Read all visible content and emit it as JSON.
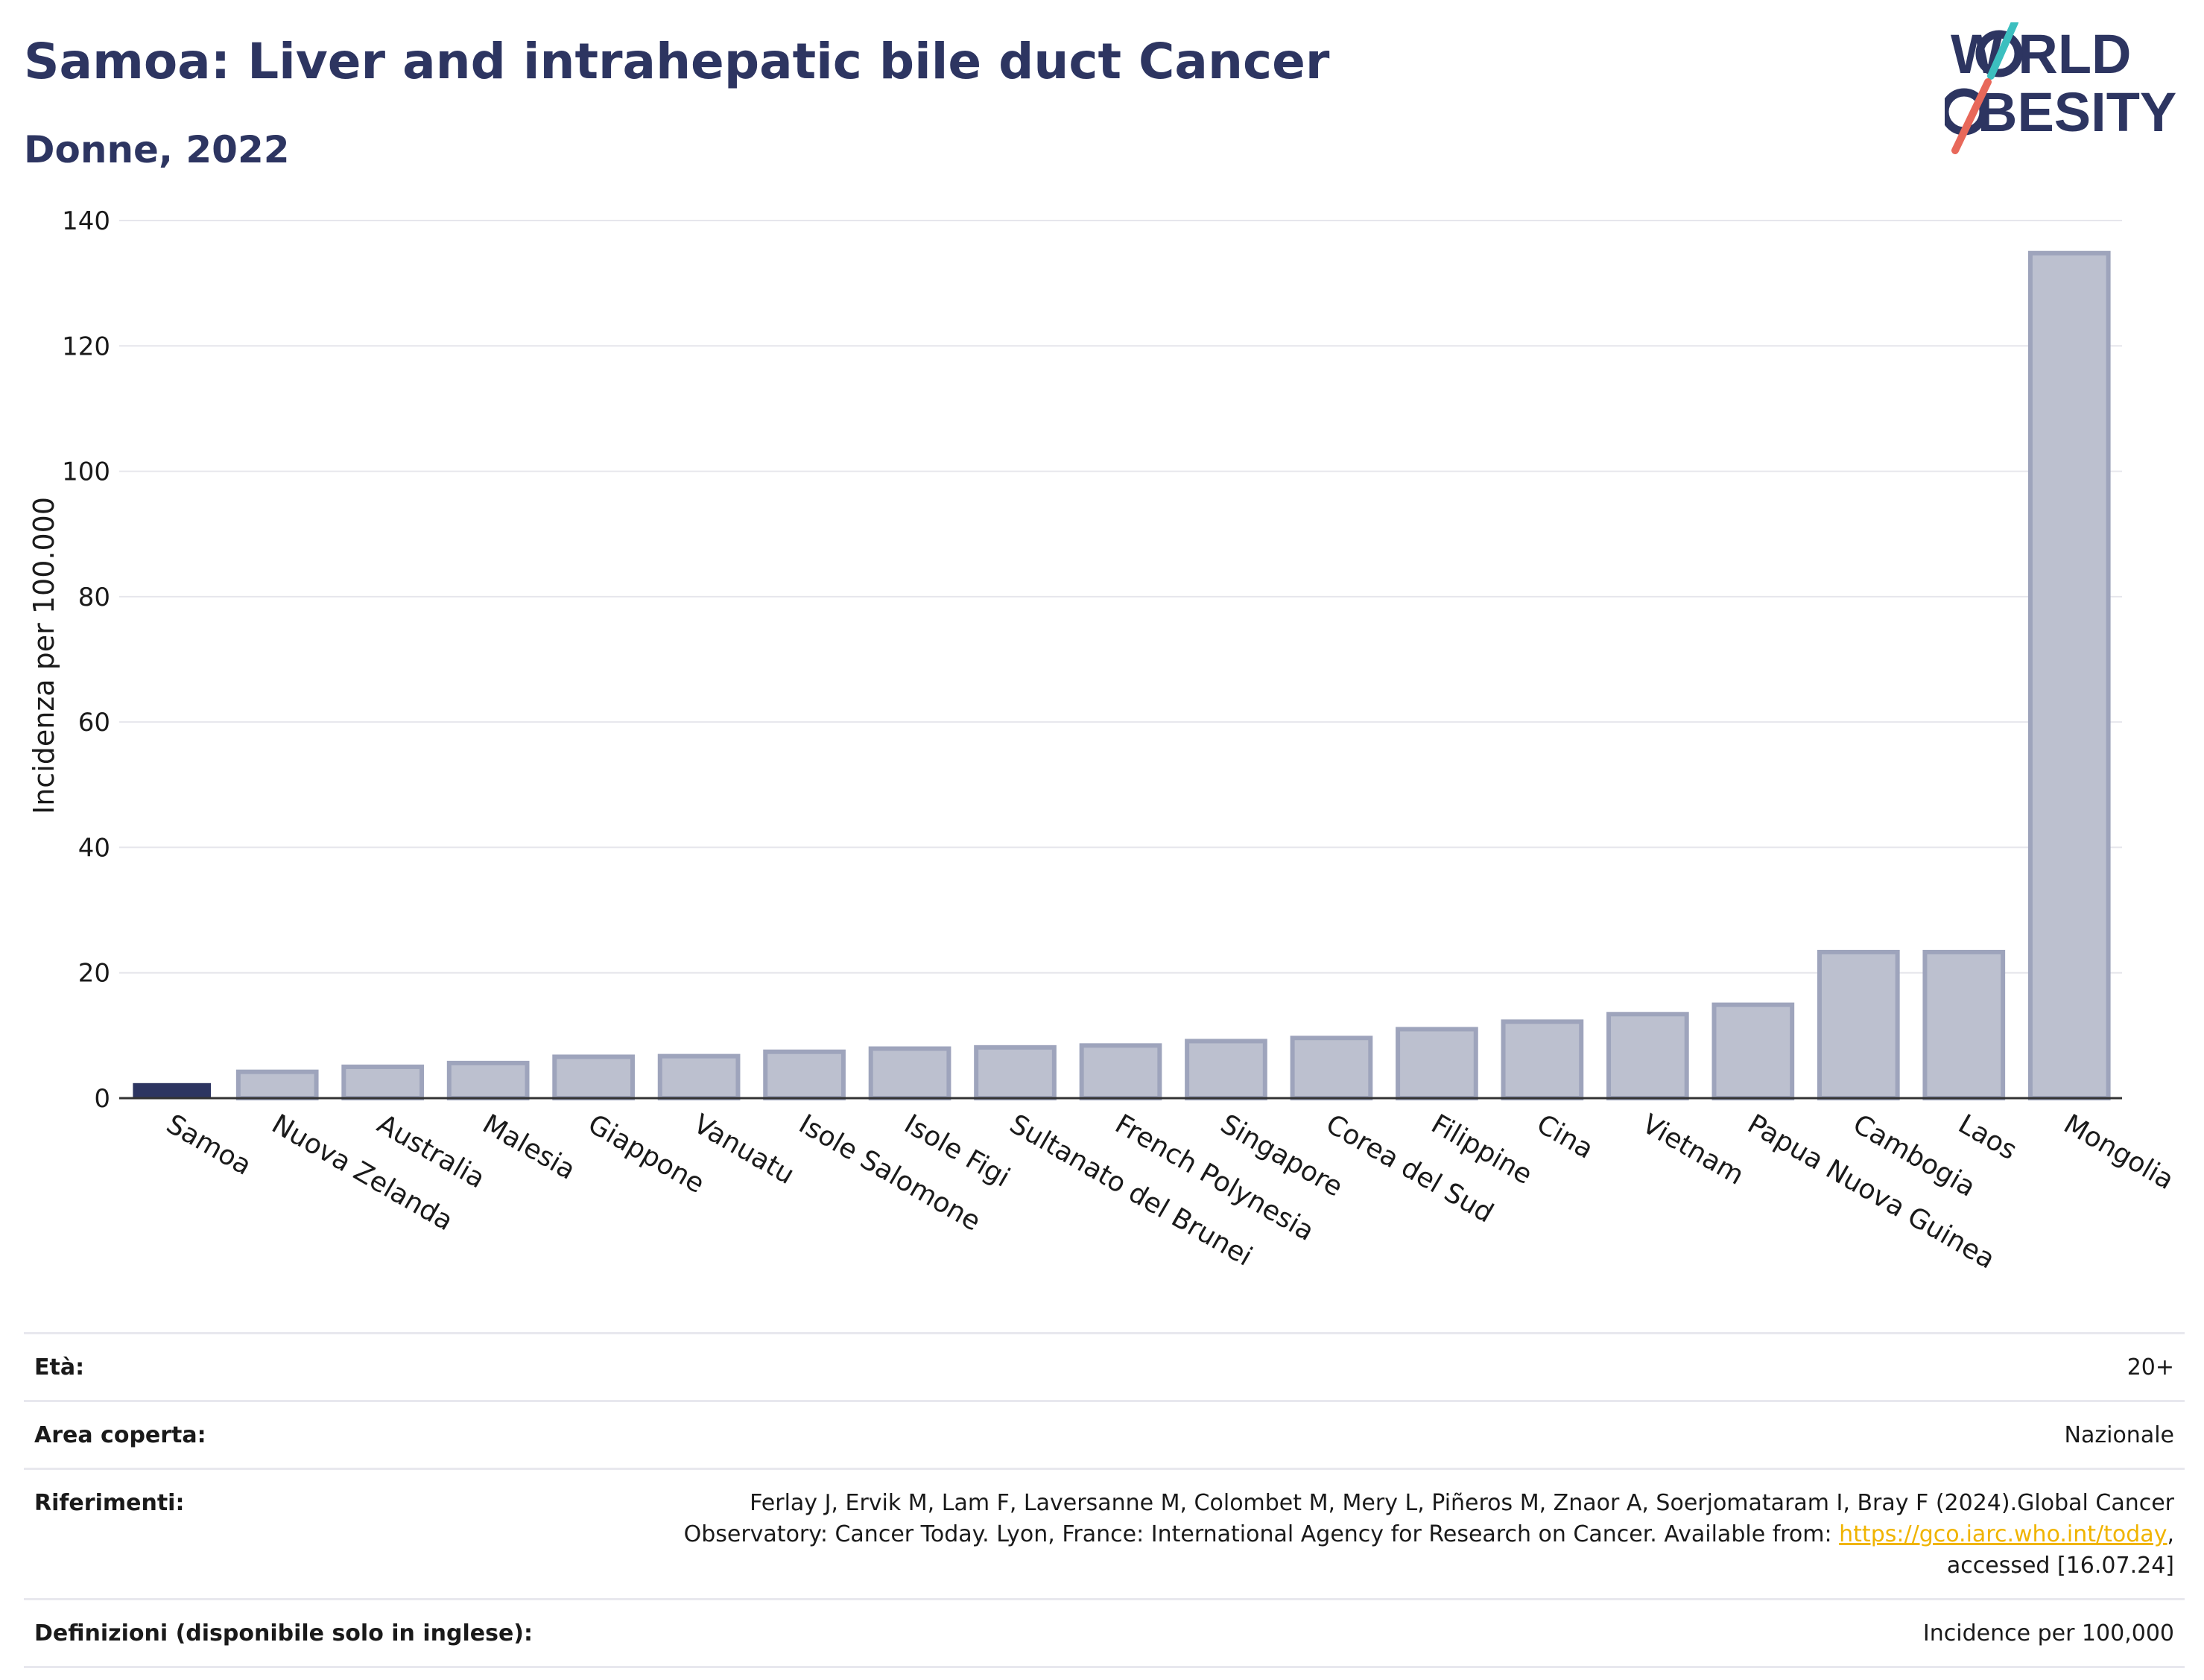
{
  "title": "Samoa: Liver and intrahepatic bile duct Cancer",
  "subtitle": "Donne, 2022",
  "logo": {
    "line1": "W RLD",
    "line2": "BESITY",
    "letter_o": "O",
    "brand_text": "WORLD OBESITY"
  },
  "colors": {
    "highlight_bar": "#2d3561",
    "other_bar": "#bcc0cf",
    "other_bar_border": "#9ea4bc",
    "title": "#2d3561",
    "grid": "#e6e6ec",
    "link": "#f0b400",
    "logo_teal": "#3cbfbf",
    "logo_red": "#e8685a"
  },
  "chart_data": {
    "type": "bar",
    "ylabel": "Incidenza per 100.000",
    "xlabel": "",
    "ylim": [
      0,
      140
    ],
    "yticks": [
      0,
      20,
      40,
      60,
      80,
      100,
      120,
      140
    ],
    "grid": true,
    "highlight": "Samoa",
    "categories": [
      "Samoa",
      "Nuova Zelanda",
      "Australia",
      "Malesia",
      "Giappone",
      "Vanuatu",
      "Isole Salomone",
      "Isole Figi",
      "Sultanato del Brunei",
      "French Polynesia",
      "Singapore",
      "Corea del Sud",
      "Filippine",
      "Cina",
      "Vietnam",
      "Papua Nuova Guinea",
      "Cambogia",
      "Laos",
      "Mongolia"
    ],
    "values": [
      2.4,
      4.2,
      5.0,
      5.6,
      6.6,
      6.7,
      7.4,
      7.9,
      8.1,
      8.4,
      9.1,
      9.6,
      11.0,
      12.2,
      13.4,
      14.9,
      23.3,
      23.3,
      134.8
    ]
  },
  "info": {
    "rows": [
      {
        "label": "Età:",
        "value": "20+"
      },
      {
        "label": "Area coperta:",
        "value": "Nazionale"
      },
      {
        "label": "Riferimenti:",
        "value_line1": "Ferlay J, Ervik M, Lam F, Laversanne M, Colombet M, Mery L, Piñeros M, Znaor A, Soerjomataram I, Bray F (2024).Global Cancer",
        "value_line2_pre": "Observatory: Cancer Today. Lyon, France: International Agency for Research on Cancer. Available from: ",
        "link": "https://gco.iarc.who.int/today",
        "value_line2_post": ",",
        "value_line3": "accessed [16.07.24]"
      },
      {
        "label": "Definizioni (disponibile solo in inglese):",
        "value": "Incidence per 100,000"
      }
    ]
  }
}
